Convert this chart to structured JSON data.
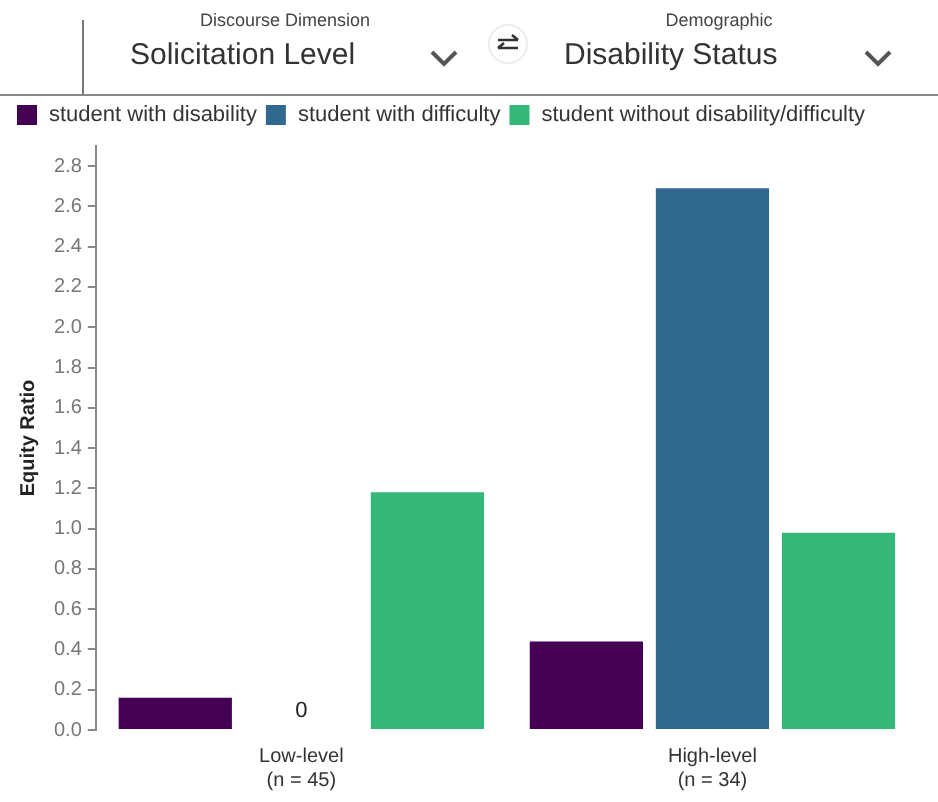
{
  "chart_data": {
    "type": "bar",
    "annotations": [
      "Discourse Dimension",
      "Solicitation Level",
      "Demographic",
      "Disability Status"
    ],
    "ylabel": "Equity Ratio",
    "categories": [
      "Low-level\n(n = 45)",
      "High-level\n(n = 34)"
    ],
    "series": [
      {
        "name": "student with disability",
        "color": "#440154",
        "values": [
          0.17,
          0.45
        ]
      },
      {
        "name": "student with difficulty",
        "color": "#31688e",
        "values": [
          0,
          2.7
        ],
        "value_labels": [
          "0",
          null
        ]
      },
      {
        "name": "student without disability/difficulty",
        "color": "#35b779",
        "values": [
          1.19,
          0.99
        ]
      }
    ],
    "ylim": [
      0,
      2.9
    ],
    "yticks": [
      {
        "value": 0,
        "label": "0.0"
      },
      0.2,
      0.4,
      0.6,
      0.8,
      {
        "value": 1,
        "label": "1.0"
      },
      1.2,
      1.4,
      1.6,
      1.8,
      {
        "value": 2,
        "label": "2.0"
      },
      2.2,
      2.4,
      2.6,
      2.8
    ],
    "legend": "top left",
    "grid": false
  }
}
